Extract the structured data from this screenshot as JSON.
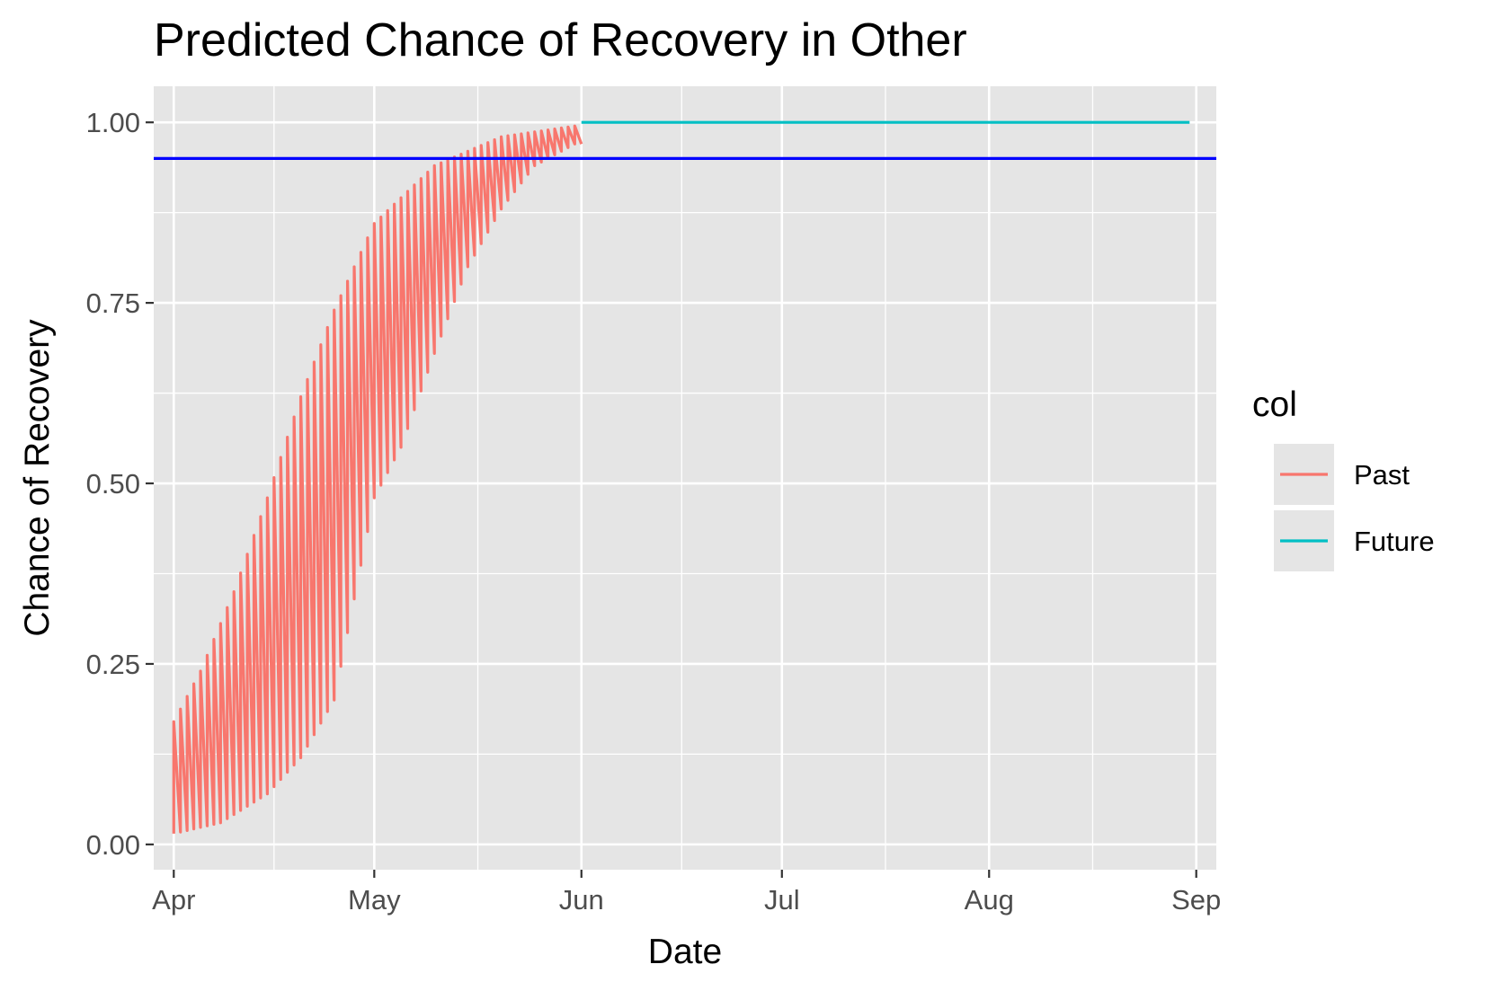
{
  "chart_data": {
    "type": "line",
    "title": "Predicted Chance of Recovery in Other",
    "xlabel": "Date",
    "ylabel": "Chance of Recovery",
    "x_axis": {
      "scale": "date",
      "range": [
        "2020-03-29",
        "2020-09-04"
      ],
      "ticks": [
        {
          "date": "2020-04-01",
          "label": "Apr"
        },
        {
          "date": "2020-05-01",
          "label": "May"
        },
        {
          "date": "2020-06-01",
          "label": "Jun"
        },
        {
          "date": "2020-07-01",
          "label": "Jul"
        },
        {
          "date": "2020-08-01",
          "label": "Aug"
        },
        {
          "date": "2020-09-01",
          "label": "Sep"
        }
      ]
    },
    "y_axis": {
      "range": [
        -0.035,
        1.05
      ],
      "ticks": [
        {
          "value": 0.0,
          "label": "0.00"
        },
        {
          "value": 0.25,
          "label": "0.25"
        },
        {
          "value": 0.5,
          "label": "0.50"
        },
        {
          "value": 0.75,
          "label": "0.75"
        },
        {
          "value": 1.0,
          "label": "1.00"
        }
      ]
    },
    "grid": true,
    "reference_line": {
      "y": 0.95,
      "color": "#0000ff"
    },
    "legend": {
      "title": "col",
      "position": "right",
      "entries": [
        {
          "label": "Past",
          "color": "#f8766d"
        },
        {
          "label": "Future",
          "color": "#00bfc4"
        }
      ]
    },
    "series": [
      {
        "name": "Past",
        "color": "#f8766d",
        "note_values": "per forecast day, the curve runs from the start value on that day to the end value 30 days later (sawtooth)",
        "start_date": "2020-04-01",
        "segments": [
          {
            "date": "2020-04-01",
            "start": 0.17,
            "end": 0.85
          },
          {
            "date": "2020-04-05",
            "start": 0.24,
            "end": 0.88
          },
          {
            "date": "2020-04-10",
            "start": 0.35,
            "end": 0.91
          },
          {
            "date": "2020-04-15",
            "start": 0.48,
            "end": 0.93
          },
          {
            "date": "2020-04-20",
            "start": 0.62,
            "end": 0.95
          },
          {
            "date": "2020-04-25",
            "start": 0.74,
            "end": 0.97
          },
          {
            "date": "2020-05-01",
            "start": 0.86,
            "end": 0.985
          },
          {
            "date": "2020-05-10",
            "start": 0.94,
            "end": 0.995
          },
          {
            "date": "2020-05-20",
            "start": 0.98,
            "end": 0.999
          },
          {
            "date": "2020-05-31",
            "start": 0.995,
            "end": 1.0
          }
        ],
        "low_envelope": [
          {
            "date": "2020-04-01",
            "value": 0.015
          },
          {
            "date": "2020-04-08",
            "value": 0.03
          },
          {
            "date": "2020-04-15",
            "value": 0.07
          },
          {
            "date": "2020-04-20",
            "value": 0.12
          },
          {
            "date": "2020-04-25",
            "value": 0.2
          },
          {
            "date": "2020-05-01",
            "value": 0.48
          },
          {
            "date": "2020-05-05",
            "value": 0.55
          },
          {
            "date": "2020-05-10",
            "value": 0.68
          },
          {
            "date": "2020-05-15",
            "value": 0.8
          },
          {
            "date": "2020-05-20",
            "value": 0.88
          },
          {
            "date": "2020-05-25",
            "value": 0.94
          },
          {
            "date": "2020-05-31",
            "value": 0.97
          }
        ]
      },
      {
        "name": "Future",
        "color": "#00bfc4",
        "points": [
          {
            "date": "2020-06-01",
            "value": 1.0
          },
          {
            "date": "2020-08-31",
            "value": 1.0
          }
        ]
      }
    ]
  }
}
